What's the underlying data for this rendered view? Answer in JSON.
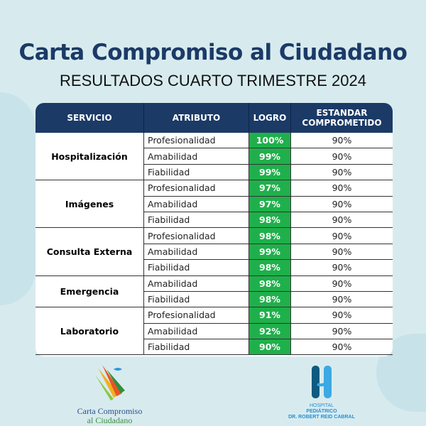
{
  "title": "Carta Compromiso al Ciudadano",
  "subtitle": "RESULTADOS CUARTO TRIMESTRE 2024",
  "table": {
    "headers": [
      "SERVICIO",
      "ATRIBUTO",
      "LOGRO",
      "ESTANDAR COMPROMETIDO"
    ],
    "groups": [
      {
        "servicio": "Hospitalización",
        "rows": [
          [
            "Profesionalidad",
            "100%",
            "90%"
          ],
          [
            "Amabilidad",
            "99%",
            "90%"
          ],
          [
            "Fiabilidad",
            "99%",
            "90%"
          ]
        ]
      },
      {
        "servicio": "Imágenes",
        "rows": [
          [
            "Profesionalidad",
            "97%",
            "90%"
          ],
          [
            "Amabilidad",
            "97%",
            "90%"
          ],
          [
            "Fiabilidad",
            "98%",
            "90%"
          ]
        ]
      },
      {
        "servicio": "Consulta Externa",
        "rows": [
          [
            "Profesionalidad",
            "98%",
            "90%"
          ],
          [
            "Amabilidad",
            "99%",
            "90%"
          ],
          [
            "Fiabilidad",
            "98%",
            "90%"
          ]
        ]
      },
      {
        "servicio": "Emergencia",
        "rows": [
          [
            "Amabilidad",
            "98%",
            "90%"
          ],
          [
            "Fiabilidad",
            "98%",
            "90%"
          ]
        ]
      },
      {
        "servicio": "Laboratorio",
        "rows": [
          [
            "Profesionalidad",
            "91%",
            "90%"
          ],
          [
            "Amabilidad",
            "92%",
            "90%"
          ],
          [
            "Fiabilidad",
            "90%",
            "90%"
          ]
        ]
      }
    ]
  },
  "logos": {
    "left_line1": "Carta Compromiso",
    "left_line2": "al Ciudadano",
    "right_line1": "HOSPITAL",
    "right_line2": "PEDIÁTRICO",
    "right_line3": "DR. ROBERT REID CABRAL"
  },
  "colors": {
    "header": "#1b3a66",
    "logro": "#1fb04b"
  }
}
